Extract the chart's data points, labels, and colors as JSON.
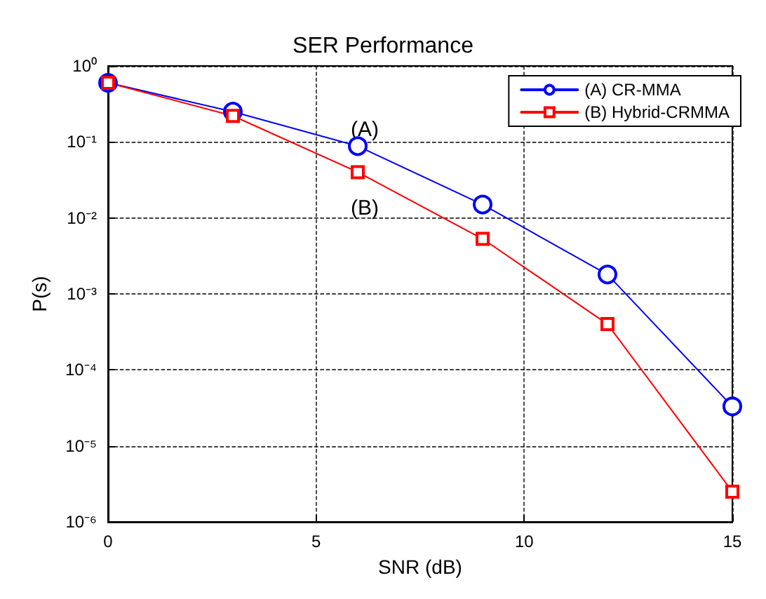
{
  "chart_data": {
    "type": "line",
    "title": "SER Performance",
    "xlabel": "SNR (dB)",
    "ylabel": "P(s)",
    "x": [
      0,
      3,
      6,
      9,
      12,
      15
    ],
    "series": [
      {
        "name": "(A) CR-MMA",
        "color": "#0000ff",
        "marker": "circle",
        "values": [
          0.6,
          0.25,
          0.088,
          0.015,
          0.0018,
          3.3e-05
        ]
      },
      {
        "name": "(B) Hybrid-CRMMA",
        "color": "#ff0000",
        "marker": "square",
        "values": [
          0.6,
          0.22,
          0.04,
          0.0053,
          0.0004,
          2.5e-06
        ]
      }
    ],
    "annotations": [
      "(A)",
      "(B)"
    ],
    "log": "y",
    "xlim": [
      0,
      15
    ],
    "xticks": [
      0,
      5,
      10,
      15
    ],
    "ylim": [
      1e-06,
      1
    ],
    "yticks": [
      {
        "value": 1e-06,
        "label": "10⁻⁶"
      },
      {
        "value": 1e-05,
        "label": "10⁻⁵"
      },
      {
        "value": 0.0001,
        "label": "10⁻⁴"
      },
      {
        "value": 0.001,
        "label": "10⁻³"
      },
      {
        "value": 0.01,
        "label": "10⁻²"
      },
      {
        "value": 0.1,
        "label": "10⁻¹"
      },
      {
        "value": 1,
        "label": "10⁰"
      }
    ],
    "grid": true,
    "legend": "top right",
    "line_style": "solid"
  }
}
